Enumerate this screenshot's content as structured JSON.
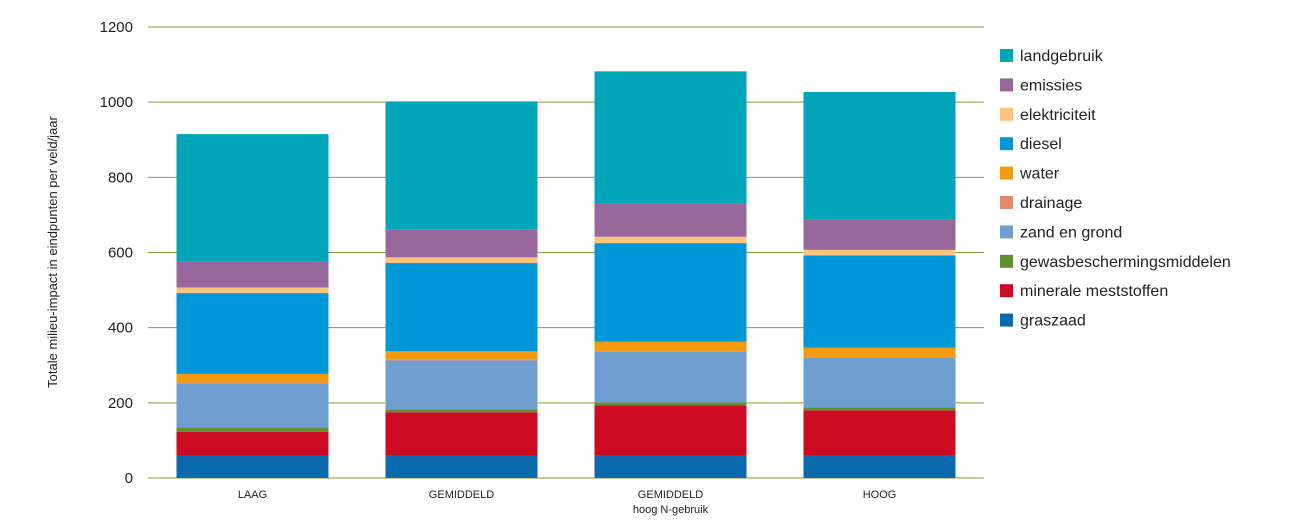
{
  "chart_data": {
    "type": "bar",
    "stacked": true,
    "categories": [
      [
        "LAAG"
      ],
      [
        "GEMIDDELD"
      ],
      [
        "GEMIDDELD",
        "hoog N-gebruik"
      ],
      [
        "HOOG"
      ]
    ],
    "ylabel": "Totale milieu-impact in eindpunten per veld/jaar",
    "ylim": [
      0,
      1200
    ],
    "yticks": [
      0,
      200,
      400,
      600,
      800,
      1000,
      1200
    ],
    "grid": true,
    "legend_position": "right",
    "series": [
      {
        "name": "graszaad",
        "color": "#0a6aad",
        "values": [
          60,
          60,
          60,
          60
        ]
      },
      {
        "name": "minerale meststoffen",
        "color": "#cc0a21",
        "values": [
          63,
          115,
          133,
          120
        ]
      },
      {
        "name": "gewasbeschermingsmiddelen",
        "color": "#5f8f2e",
        "values": [
          12,
          8,
          8,
          8
        ]
      },
      {
        "name": "zand en grond",
        "color": "#6f9fd0",
        "values": [
          117,
          130,
          135,
          132
        ]
      },
      {
        "name": "drainage",
        "color": "#e48a6a",
        "values": [
          2,
          2,
          2,
          2
        ]
      },
      {
        "name": "water",
        "color": "#f49a0e",
        "values": [
          23,
          22,
          25,
          25
        ]
      },
      {
        "name": "diesel",
        "color": "#0097d9",
        "values": [
          215,
          235,
          262,
          245
        ]
      },
      {
        "name": "elektriciteit",
        "color": "#fbc57d",
        "values": [
          15,
          15,
          17,
          15
        ]
      },
      {
        "name": "emissies",
        "color": "#98679b",
        "values": [
          68,
          75,
          88,
          80
        ]
      },
      {
        "name": "landgebruik",
        "color": "#00a5b8",
        "values": [
          340,
          340,
          352,
          340
        ]
      }
    ]
  }
}
